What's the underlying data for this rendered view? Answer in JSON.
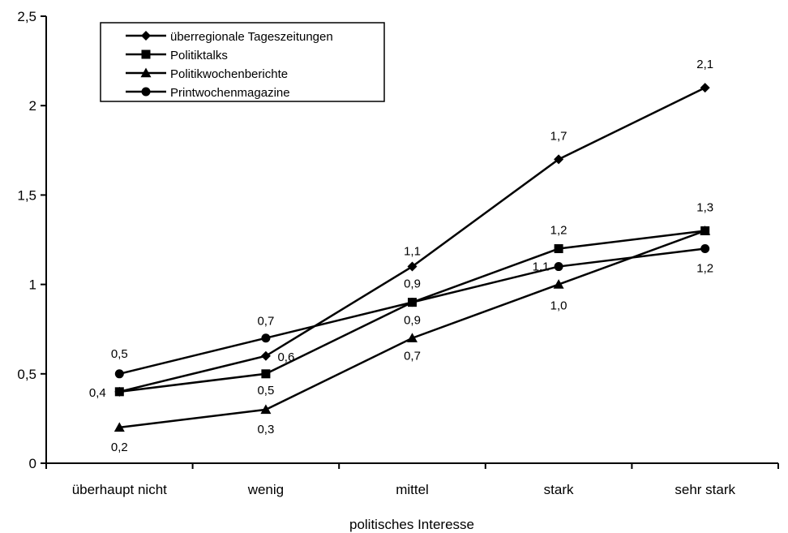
{
  "chart_data": {
    "type": "line",
    "title": "",
    "xlabel": "politisches Interesse",
    "ylabel": "",
    "categories": [
      "überhaupt nicht",
      "wenig",
      "mittel",
      "stark",
      "sehr stark"
    ],
    "ylim": [
      0,
      2.5
    ],
    "yticks": [
      0,
      0.5,
      1,
      1.5,
      2,
      2.5
    ],
    "ytick_labels": [
      "0",
      "0,5",
      "1",
      "1,5",
      "2",
      "2,5"
    ],
    "grid": false,
    "legend_position": "top-left",
    "series": [
      {
        "name": "überregionale Tageszeitungen",
        "marker": "diamond",
        "values": [
          0.4,
          0.6,
          1.1,
          1.7,
          2.1
        ],
        "labels": [
          "0,4",
          "0,6",
          "1,1",
          "1,7",
          "2,1"
        ]
      },
      {
        "name": "Politiktalks",
        "marker": "square",
        "values": [
          0.4,
          0.5,
          0.9,
          1.2,
          1.3
        ],
        "labels": [
          "",
          "0,5",
          "0,9",
          "1,2",
          "1,3"
        ]
      },
      {
        "name": "Politikwochenberichte",
        "marker": "triangle",
        "values": [
          0.2,
          0.3,
          0.7,
          1.0,
          1.3
        ],
        "labels": [
          "0,2",
          "0,3",
          "0,7",
          "1,0",
          ""
        ]
      },
      {
        "name": "Printwochenmagazine",
        "marker": "circle",
        "values": [
          0.5,
          0.7,
          0.9,
          1.1,
          1.2
        ],
        "labels": [
          "0,5",
          "0,7",
          "0,9",
          "1,1",
          "1,2"
        ]
      }
    ]
  }
}
